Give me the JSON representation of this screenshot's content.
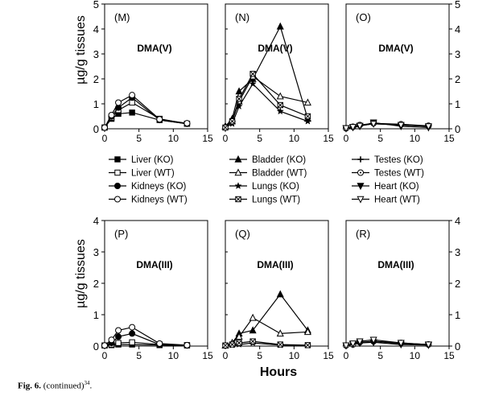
{
  "figure": {
    "caption_label": "Fig. 6.",
    "caption_text": " (continued)",
    "caption_ref": "34",
    "caption_end": ".",
    "ylabel": "µg/g tissues",
    "xlabel": "Hours"
  },
  "legends": [
    [
      "Liver (KO)",
      "Liver (WT)",
      "Kidneys (KO)",
      "Kidneys (WT)"
    ],
    [
      "Bladder (KO)",
      "Bladder (WT)",
      "Lungs (KO)",
      "Lungs (WT)"
    ],
    [
      "Testes (KO)",
      "Testes (WT)",
      "Heart (KO)",
      "Heart (WT)"
    ]
  ],
  "chart_data": [
    {
      "type": "line",
      "panel": "(M)",
      "title": "DMA(V)",
      "xlim": [
        0,
        15
      ],
      "ylim": [
        0,
        5
      ],
      "xticks": [
        0,
        5,
        10,
        15
      ],
      "yticks": [
        0,
        1,
        2,
        3,
        4,
        5
      ],
      "y_axis_labels": "left",
      "series": [
        {
          "name": "Liver (KO)",
          "marker": "square-filled",
          "x": [
            0,
            1,
            2,
            4,
            8,
            12
          ],
          "y": [
            0.05,
            0.4,
            0.6,
            0.65,
            0.35,
            0.2
          ]
        },
        {
          "name": "Liver (WT)",
          "marker": "square-open",
          "x": [
            0,
            1,
            2,
            4,
            8,
            12
          ],
          "y": [
            0.05,
            0.45,
            0.75,
            1.05,
            0.4,
            0.2
          ]
        },
        {
          "name": "Kidneys (KO)",
          "marker": "circle-filled",
          "x": [
            0,
            1,
            2,
            4,
            8,
            12
          ],
          "y": [
            0.05,
            0.5,
            0.85,
            1.25,
            0.35,
            0.2
          ]
        },
        {
          "name": "Kidneys (WT)",
          "marker": "circle-open",
          "x": [
            0,
            1,
            2,
            4,
            8,
            12
          ],
          "y": [
            0.05,
            0.55,
            1.05,
            1.35,
            0.38,
            0.22
          ]
        }
      ]
    },
    {
      "type": "line",
      "panel": "(N)",
      "title": "DMA(V)",
      "xlim": [
        0,
        15
      ],
      "ylim": [
        0,
        5
      ],
      "xticks": [
        0,
        5,
        10,
        15
      ],
      "yticks": [
        0,
        1,
        2,
        3,
        4,
        5
      ],
      "y_axis_labels": "none",
      "series": [
        {
          "name": "Bladder (KO)",
          "marker": "triangle-filled",
          "x": [
            0,
            1,
            2,
            4,
            8,
            12
          ],
          "y": [
            0.1,
            0.4,
            1.5,
            2.0,
            4.1,
            0.4
          ]
        },
        {
          "name": "Bladder (WT)",
          "marker": "triangle-open",
          "x": [
            0,
            1,
            2,
            4,
            8,
            12
          ],
          "y": [
            0.1,
            0.3,
            1.1,
            2.1,
            1.3,
            1.05
          ]
        },
        {
          "name": "Lungs (KO)",
          "marker": "star",
          "x": [
            0,
            1,
            2,
            4,
            8,
            12
          ],
          "y": [
            0.05,
            0.2,
            0.9,
            1.8,
            0.7,
            0.3
          ]
        },
        {
          "name": "Lungs (WT)",
          "marker": "square-cross",
          "x": [
            0,
            1,
            2,
            4,
            8,
            12
          ],
          "y": [
            0.05,
            0.3,
            1.2,
            2.2,
            0.95,
            0.5
          ]
        }
      ]
    },
    {
      "type": "line",
      "panel": "(O)",
      "title": "DMA(V)",
      "xlim": [
        0,
        15
      ],
      "ylim": [
        0,
        5
      ],
      "xticks": [
        0,
        5,
        10,
        15
      ],
      "yticks": [
        0,
        1,
        2,
        3,
        4,
        5
      ],
      "y_axis_labels": "right",
      "series": [
        {
          "name": "Testes (KO)",
          "marker": "plus",
          "x": [
            0,
            1,
            2,
            4,
            8,
            12
          ],
          "y": [
            0.02,
            0.05,
            0.12,
            0.2,
            0.15,
            0.1
          ]
        },
        {
          "name": "Testes (WT)",
          "marker": "circle-dot",
          "x": [
            0,
            1,
            2,
            4,
            8,
            12
          ],
          "y": [
            0.02,
            0.08,
            0.15,
            0.22,
            0.18,
            0.12
          ]
        },
        {
          "name": "Heart (KO)",
          "marker": "triangle-down-filled",
          "x": [
            0,
            1,
            2,
            4,
            8,
            12
          ],
          "y": [
            0.02,
            0.06,
            0.1,
            0.25,
            0.1,
            0.05
          ]
        },
        {
          "name": "Heart (WT)",
          "marker": "triangle-down-open",
          "x": [
            0,
            1,
            2,
            4,
            8,
            12
          ],
          "y": [
            0.02,
            0.07,
            0.12,
            0.2,
            0.15,
            0.1
          ]
        }
      ]
    },
    {
      "type": "line",
      "panel": "(P)",
      "title": "DMA(III)",
      "xlim": [
        0,
        15
      ],
      "ylim": [
        0,
        4
      ],
      "xticks": [
        0,
        5,
        10,
        15
      ],
      "yticks": [
        0,
        1,
        2,
        3,
        4
      ],
      "y_axis_labels": "left",
      "series": [
        {
          "name": "Liver (KO)",
          "marker": "square-filled",
          "x": [
            0,
            1,
            2,
            4,
            8,
            12
          ],
          "y": [
            0.02,
            0.03,
            0.05,
            0.05,
            0.03,
            0.02
          ]
        },
        {
          "name": "Liver (WT)",
          "marker": "square-open",
          "x": [
            0,
            1,
            2,
            4,
            8,
            12
          ],
          "y": [
            0.02,
            0.05,
            0.1,
            0.12,
            0.05,
            0.03
          ]
        },
        {
          "name": "Kidneys (KO)",
          "marker": "circle-filled",
          "x": [
            0,
            1,
            2,
            4,
            8,
            12
          ],
          "y": [
            0.02,
            0.1,
            0.3,
            0.4,
            0.05,
            0.02
          ]
        },
        {
          "name": "Kidneys (WT)",
          "marker": "circle-open",
          "x": [
            0,
            1,
            2,
            4,
            8,
            12
          ],
          "y": [
            0.02,
            0.2,
            0.5,
            0.6,
            0.08,
            0.03
          ]
        }
      ]
    },
    {
      "type": "line",
      "panel": "(Q)",
      "title": "DMA(III)",
      "xlim": [
        0,
        15
      ],
      "ylim": [
        0,
        4
      ],
      "xticks": [
        0,
        5,
        10,
        15
      ],
      "yticks": [
        0,
        1,
        2,
        3,
        4
      ],
      "y_axis_labels": "none",
      "series": [
        {
          "name": "Bladder (KO)",
          "marker": "triangle-filled",
          "x": [
            0,
            1,
            2,
            4,
            8,
            12
          ],
          "y": [
            0.02,
            0.1,
            0.4,
            0.5,
            1.65,
            0.5
          ]
        },
        {
          "name": "Bladder (WT)",
          "marker": "triangle-open",
          "x": [
            0,
            1,
            2,
            4,
            8,
            12
          ],
          "y": [
            0.02,
            0.1,
            0.3,
            0.9,
            0.4,
            0.45
          ]
        },
        {
          "name": "Lungs (KO)",
          "marker": "star",
          "x": [
            0,
            1,
            2,
            4,
            8,
            12
          ],
          "y": [
            0.02,
            0.03,
            0.05,
            0.1,
            0.03,
            0.02
          ]
        },
        {
          "name": "Lungs (WT)",
          "marker": "square-cross",
          "x": [
            0,
            1,
            2,
            4,
            8,
            12
          ],
          "y": [
            0.02,
            0.05,
            0.1,
            0.15,
            0.05,
            0.03
          ]
        }
      ]
    },
    {
      "type": "line",
      "panel": "(R)",
      "title": "DMA(III)",
      "xlim": [
        0,
        15
      ],
      "ylim": [
        0,
        4
      ],
      "xticks": [
        0,
        5,
        10,
        15
      ],
      "yticks": [
        0,
        1,
        2,
        3,
        4
      ],
      "y_axis_labels": "right",
      "series": [
        {
          "name": "Testes (KO)",
          "marker": "plus",
          "x": [
            0,
            1,
            2,
            4,
            8,
            12
          ],
          "y": [
            0.02,
            0.05,
            0.1,
            0.15,
            0.08,
            0.05
          ]
        },
        {
          "name": "Testes (WT)",
          "marker": "circle-dot",
          "x": [
            0,
            1,
            2,
            4,
            8,
            12
          ],
          "y": [
            0.02,
            0.05,
            0.12,
            0.15,
            0.1,
            0.05
          ]
        },
        {
          "name": "Heart (KO)",
          "marker": "triangle-down-filled",
          "x": [
            0,
            1,
            2,
            4,
            8,
            12
          ],
          "y": [
            0.02,
            0.06,
            0.1,
            0.12,
            0.05,
            0.03
          ]
        },
        {
          "name": "Heart (WT)",
          "marker": "triangle-down-open",
          "x": [
            0,
            1,
            2,
            4,
            8,
            12
          ],
          "y": [
            0.02,
            0.08,
            0.15,
            0.2,
            0.1,
            0.05
          ]
        }
      ]
    }
  ]
}
